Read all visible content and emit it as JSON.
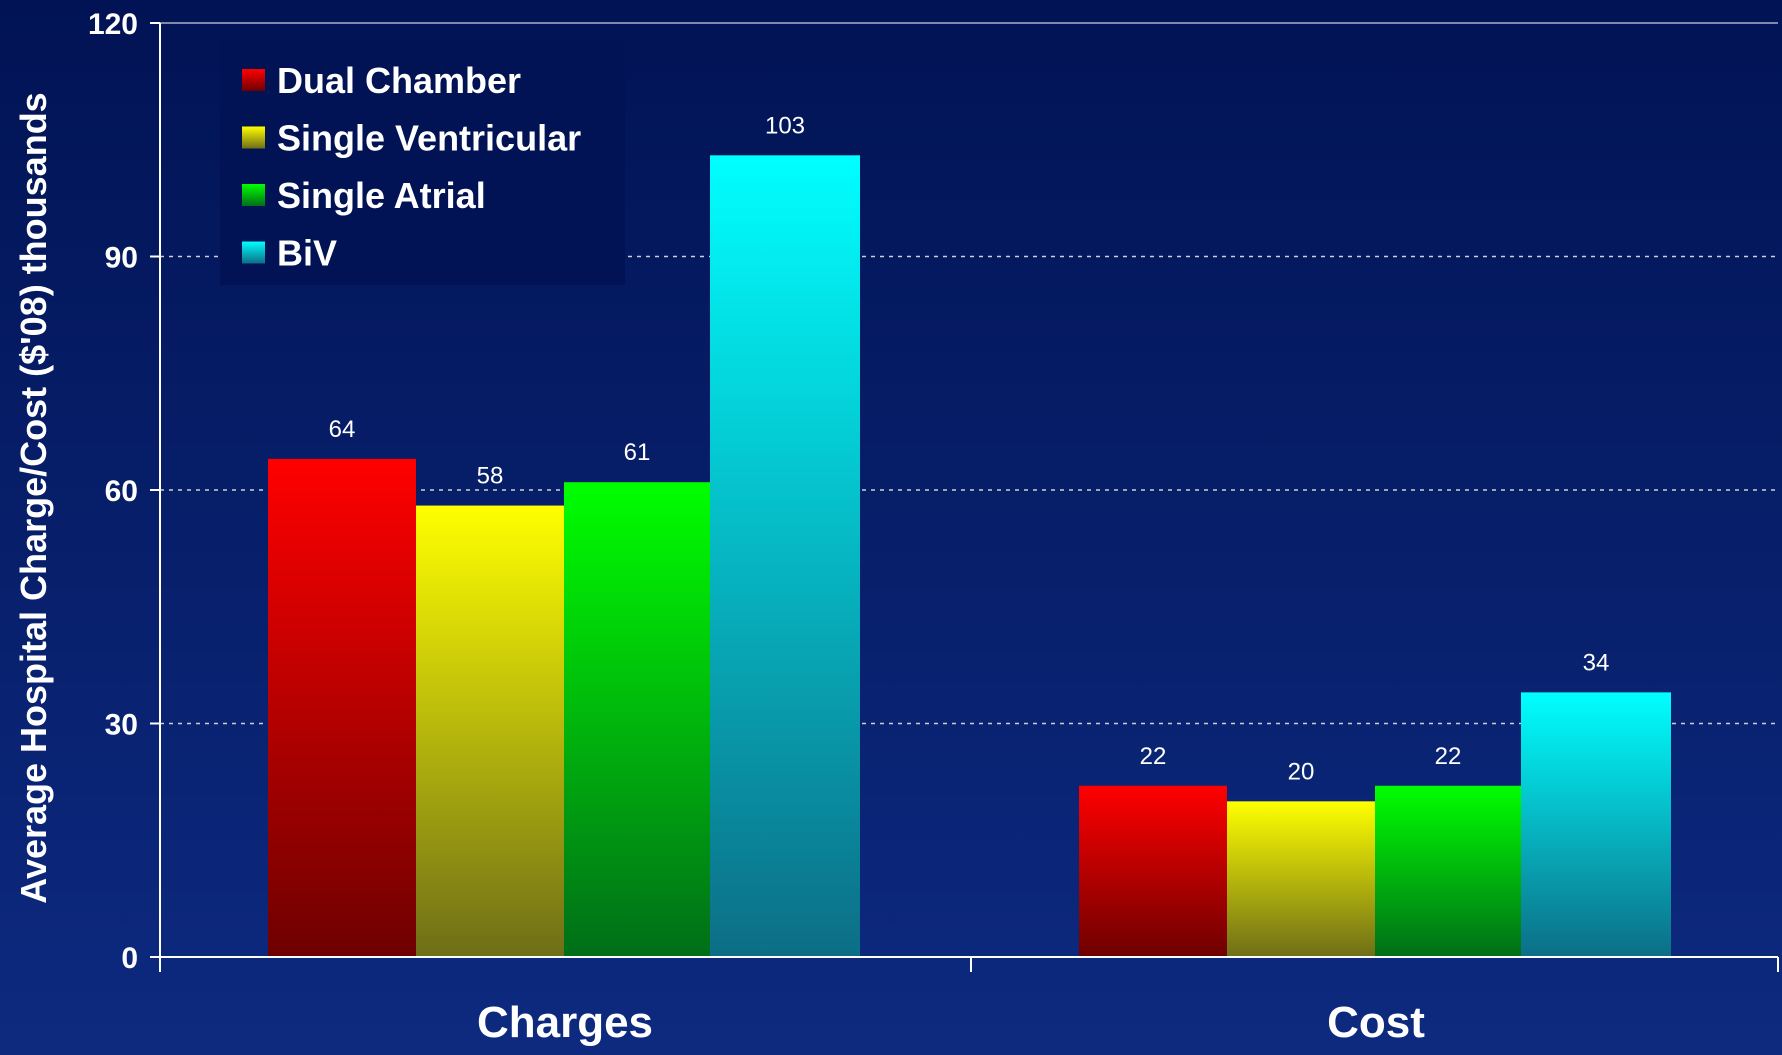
{
  "chart_data": {
    "type": "bar",
    "categories": [
      "Charges",
      "Cost"
    ],
    "series": [
      {
        "name": "Dual Chamber",
        "values": [
          64,
          22
        ],
        "color_top": "#ff0000",
        "color_bottom": "#6e0000"
      },
      {
        "name": "Single Ventricular",
        "values": [
          58,
          20
        ],
        "color_top": "#ffff00",
        "color_bottom": "#6e6e18"
      },
      {
        "name": "Single Atrial",
        "values": [
          61,
          22
        ],
        "color_top": "#00ff00",
        "color_bottom": "#006e18"
      },
      {
        "name": "BiV",
        "values": [
          103,
          34
        ],
        "color_top": "#00ffff",
        "color_bottom": "#0c6e86"
      }
    ],
    "ylabel": "Average Hospital Charge/Cost ($'08) thousands",
    "xlabel": "",
    "title": "",
    "ylim": [
      0,
      120
    ],
    "yticks": [
      0,
      30,
      60,
      90,
      120
    ],
    "grid": true,
    "legend_position": "top-left"
  },
  "colors": {
    "background_top": "#011354",
    "background_bottom": "#0d2a80",
    "axis": "#ffffff",
    "grid": "#d0d0d0"
  }
}
